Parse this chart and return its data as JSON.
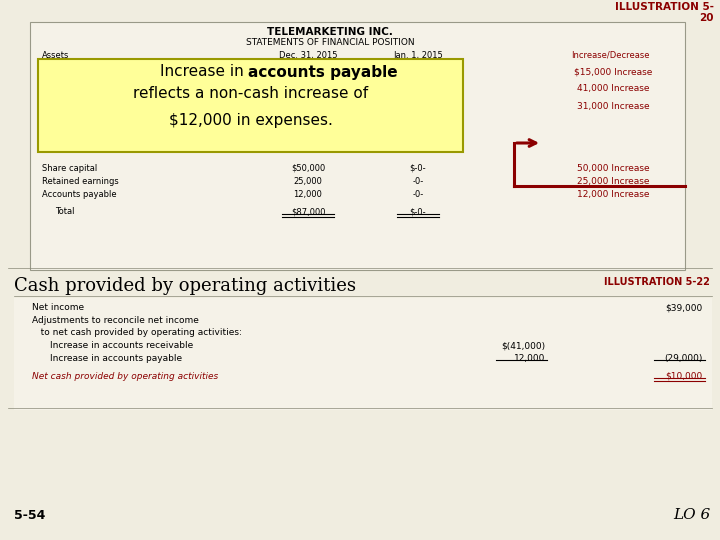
{
  "bg_color": "#f0ede0",
  "table_bg": "#f5f2e8",
  "dark_red": "#8B0000",
  "black": "#000000",
  "yellow_box_bg": "#FFFF99",
  "illus_title_line1": "ILLUSTRATION 5-",
  "illus_title_line2": "20",
  "company_name": "TELEMARKETING INC.",
  "statement_title": "STATEMENTS OF FINANCIAL POSITION",
  "header_assets": "Assets",
  "header_dec": "Dec. 31, 2015",
  "header_jan": "Jan. 1, 2015",
  "header_inc": "Increase/Decrease",
  "inc_items": [
    "$15,000 Increase",
    "41,000 Increase",
    "31,000 Increase"
  ],
  "row1_label": "Share capital",
  "row1_dec": "$50,000",
  "row1_jan": "$-0-",
  "row1_inc": "50,000 Increase",
  "row2_label": "Retained earnings",
  "row2_dec": "25,000",
  "row2_jan": "-0-",
  "row2_inc": "25,000 Increase",
  "row3_label": "Accounts payable",
  "row3_dec": "12,000",
  "row3_jan": "-0-",
  "row3_inc": "12,000 Increase",
  "total_label": "Total",
  "total_dec": "$87,000",
  "total_jan": "$-0-",
  "cash_heading": "Cash provided by operating activities",
  "illus_22": "ILLUSTRATION 5-22",
  "ni_label": "Net income",
  "ni_val": "$39,000",
  "adj_label": "Adjustments to reconcile net income",
  "adj2_label": "   to net cash provided by operating activities:",
  "rec_label": "      Increase in accounts receivable",
  "rec_val": "$(41,000)",
  "pay_label": "      Increase in accounts payable",
  "pay_val": "12,000",
  "net_sub": "(29,000)",
  "net_label": "Net cash provided by operating activities",
  "net_val": "$10,000",
  "footer_left": "5-54",
  "footer_right": "LO 6"
}
